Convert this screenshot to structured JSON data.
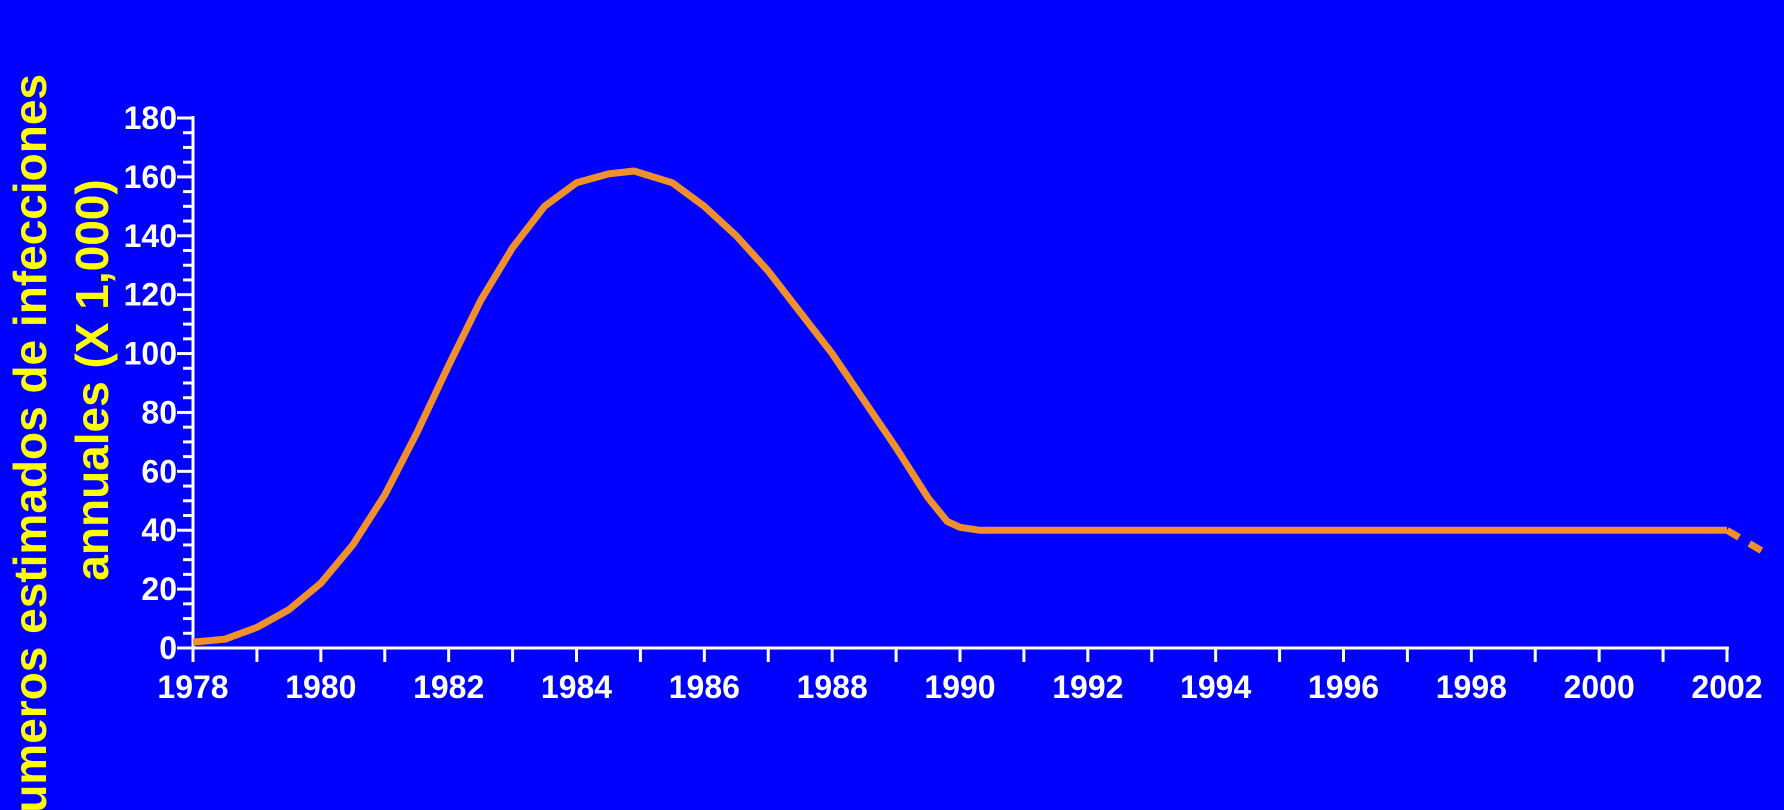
{
  "chart_data": {
    "type": "line",
    "title": "",
    "xlabel": "",
    "ylabel_line1": "Numeros estimados de infecciones",
    "ylabel_line2": "annuales (X 1,000)",
    "xlim": [
      1978,
      2002
    ],
    "ylim": [
      0,
      180
    ],
    "x_ticks": [
      "1978",
      "1980",
      "1982",
      "1984",
      "1986",
      "1988",
      "1990",
      "1992",
      "1994",
      "1996",
      "1998",
      "2000",
      "2002"
    ],
    "y_ticks": [
      "0",
      "20",
      "40",
      "60",
      "80",
      "100",
      "120",
      "140",
      "160",
      "180"
    ],
    "legend": "none",
    "grid": false,
    "series": [
      {
        "style": "solid",
        "x": [
          1978,
          1978.5,
          1979,
          1979.5,
          1980,
          1980.5,
          1981,
          1981.5,
          1982,
          1982.5,
          1983,
          1983.5,
          1984,
          1984.5,
          1984.9,
          1985.5,
          1986,
          1986.5,
          1987,
          1987.5,
          1988,
          1988.5,
          1989,
          1989.5,
          1989.8,
          1990,
          1990.3,
          1991,
          1992,
          1993,
          1994,
          1995,
          1996,
          1997,
          1998,
          1999,
          2000,
          2001,
          2002
        ],
        "y": [
          2,
          3,
          7,
          13,
          22,
          35,
          52,
          73,
          96,
          118,
          136,
          150,
          158,
          161,
          162,
          158,
          150,
          140,
          128,
          114,
          100,
          84,
          68,
          51,
          43,
          41,
          40,
          40,
          40,
          40,
          40,
          40,
          40,
          40,
          40,
          40,
          40,
          40,
          40
        ]
      },
      {
        "style": "dashed",
        "x": [
          2002,
          2002.7
        ],
        "y": [
          40,
          31
        ]
      }
    ]
  },
  "colors": {
    "background": "#0000FF",
    "axis": "#FFFFFF",
    "tick_label": "#FFFFFF",
    "ylabel": "#FFFF00",
    "line": "#F0902A"
  }
}
